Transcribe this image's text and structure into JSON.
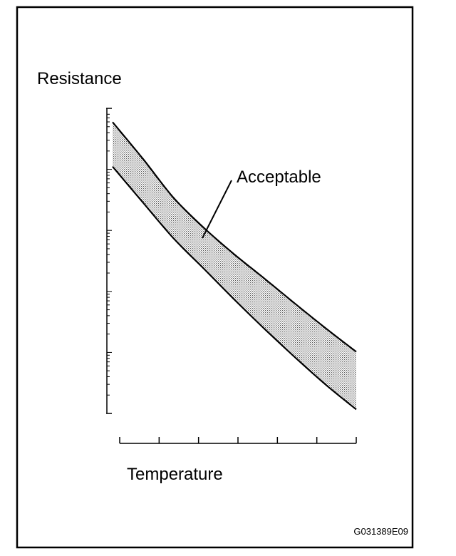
{
  "figure": {
    "figure_id": "G031389E09"
  },
  "chart_data": {
    "type": "area",
    "title": "",
    "ylabel": "Resistance",
    "xlabel": "Temperature",
    "annotations": [
      {
        "text": "Acceptable"
      }
    ],
    "yscale": "log",
    "xlim": [
      0,
      6
    ],
    "ylim": [
      0,
      1
    ],
    "grid": false,
    "legend": "none",
    "x_ticks": [
      0,
      1,
      2,
      3,
      4,
      5,
      6
    ],
    "series": [
      {
        "x": [
          0.0,
          0.75,
          1.5,
          2.25,
          3.0,
          3.75,
          4.5,
          5.25,
          6.0
        ],
        "upper": [
          0.955,
          0.834,
          0.707,
          0.608,
          0.521,
          0.441,
          0.359,
          0.279,
          0.202
        ],
        "lower": [
          0.809,
          0.691,
          0.574,
          0.474,
          0.373,
          0.276,
          0.183,
          0.094,
          0.013
        ]
      }
    ],
    "fill_color": "#c8c8c8",
    "line_color": "#000000"
  }
}
